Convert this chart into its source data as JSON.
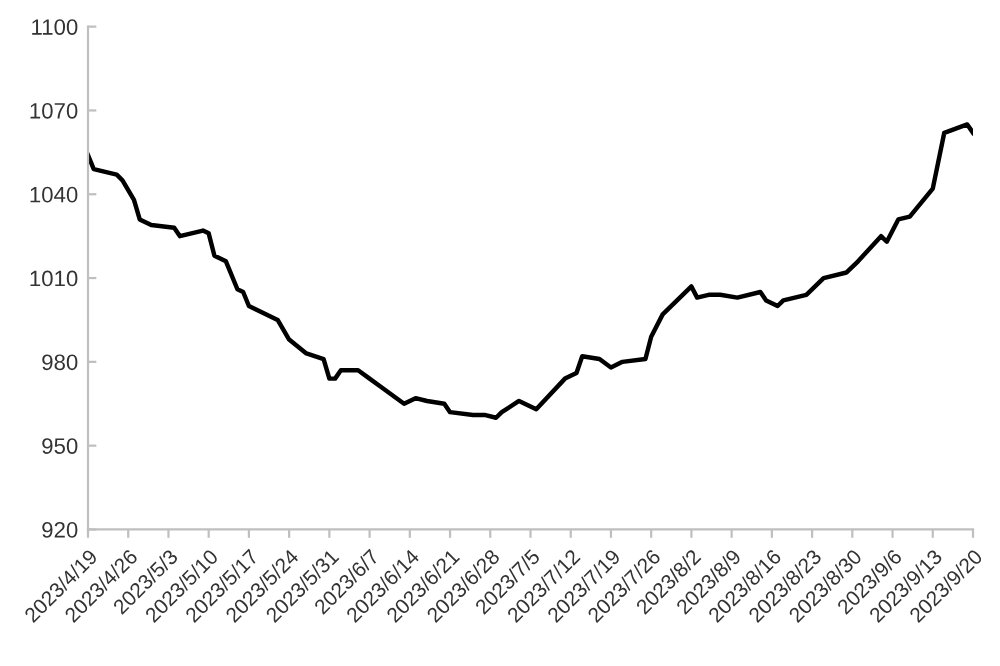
{
  "chart_data": {
    "type": "line",
    "grid": false,
    "legend": false,
    "marker": "none",
    "line_style": "solid",
    "x": [
      "2023-04-19",
      "2023-04-20",
      "2023-04-24",
      "2023-04-25",
      "2023-04-27",
      "2023-04-28",
      "2023-04-30",
      "2023-05-04",
      "2023-05-05",
      "2023-05-09",
      "2023-05-10",
      "2023-05-11",
      "2023-05-13",
      "2023-05-15",
      "2023-05-16",
      "2023-05-17",
      "2023-05-22",
      "2023-05-24",
      "2023-05-27",
      "2023-05-30",
      "2023-05-31",
      "2023-06-01",
      "2023-06-02",
      "2023-06-05",
      "2023-06-07",
      "2023-06-09",
      "2023-06-13",
      "2023-06-14",
      "2023-06-15",
      "2023-06-17",
      "2023-06-20",
      "2023-06-21",
      "2023-06-25",
      "2023-06-27",
      "2023-06-29",
      "2023-06-30",
      "2023-07-03",
      "2023-07-06",
      "2023-07-11",
      "2023-07-13",
      "2023-07-14",
      "2023-07-17",
      "2023-07-19",
      "2023-07-21",
      "2023-07-25",
      "2023-07-26",
      "2023-07-28",
      "2023-08-02",
      "2023-08-03",
      "2023-08-05",
      "2023-08-07",
      "2023-08-10",
      "2023-08-14",
      "2023-08-15",
      "2023-08-17",
      "2023-08-18",
      "2023-08-22",
      "2023-08-25",
      "2023-08-29",
      "2023-08-31",
      "2023-09-04",
      "2023-09-05",
      "2023-09-07",
      "2023-09-09",
      "2023-09-13",
      "2023-09-15",
      "2023-09-19",
      "2023-09-20"
    ],
    "series": [
      {
        "color": "#000000",
        "values": [
          1054,
          1049,
          1047,
          1045,
          1038,
          1031,
          1029,
          1028,
          1025,
          1027,
          1026,
          1018,
          1016,
          1006,
          1005,
          1000,
          995,
          988,
          983,
          981,
          974,
          974,
          977,
          977,
          974,
          971,
          965,
          966,
          967,
          966,
          965,
          962,
          961,
          961,
          960,
          962,
          966,
          963,
          974,
          976,
          982,
          981,
          978,
          980,
          981,
          989,
          997,
          1007,
          1003,
          1004,
          1004,
          1003,
          1005,
          1002,
          1000,
          1002,
          1004,
          1010,
          1012,
          1016,
          1025,
          1023,
          1031,
          1032,
          1042,
          1062,
          1065,
          1062
        ]
      }
    ],
    "xlim": [
      "2023-04-19",
      "2023-09-20"
    ],
    "xticks": [
      {
        "value": "2023-04-19",
        "label": "2023/4/19"
      },
      {
        "value": "2023-04-26",
        "label": "2023/4/26"
      },
      {
        "value": "2023-05-03",
        "label": "2023/5/3"
      },
      {
        "value": "2023-05-10",
        "label": "2023/5/10"
      },
      {
        "value": "2023-05-17",
        "label": "2023/5/17"
      },
      {
        "value": "2023-05-24",
        "label": "2023/5/24"
      },
      {
        "value": "2023-05-31",
        "label": "2023/5/31"
      },
      {
        "value": "2023-06-07",
        "label": "2023/6/7"
      },
      {
        "value": "2023-06-14",
        "label": "2023/6/14"
      },
      {
        "value": "2023-06-21",
        "label": "2023/6/21"
      },
      {
        "value": "2023-06-28",
        "label": "2023/6/28"
      },
      {
        "value": "2023-07-05",
        "label": "2023/7/5"
      },
      {
        "value": "2023-07-12",
        "label": "2023/7/12"
      },
      {
        "value": "2023-07-19",
        "label": "2023/7/19"
      },
      {
        "value": "2023-07-26",
        "label": "2023/7/26"
      },
      {
        "value": "2023-08-02",
        "label": "2023/8/2"
      },
      {
        "value": "2023-08-09",
        "label": "2023/8/9"
      },
      {
        "value": "2023-08-16",
        "label": "2023/8/16"
      },
      {
        "value": "2023-08-23",
        "label": "2023/8/23"
      },
      {
        "value": "2023-08-30",
        "label": "2023/8/30"
      },
      {
        "value": "2023-09-06",
        "label": "2023/9/6"
      },
      {
        "value": "2023-09-13",
        "label": "2023/9/13"
      },
      {
        "value": "2023-09-20",
        "label": "2023/9/20"
      }
    ],
    "ylim": [
      920,
      1100
    ],
    "yticks": [
      920,
      950,
      980,
      1010,
      1040,
      1070,
      1100
    ]
  }
}
